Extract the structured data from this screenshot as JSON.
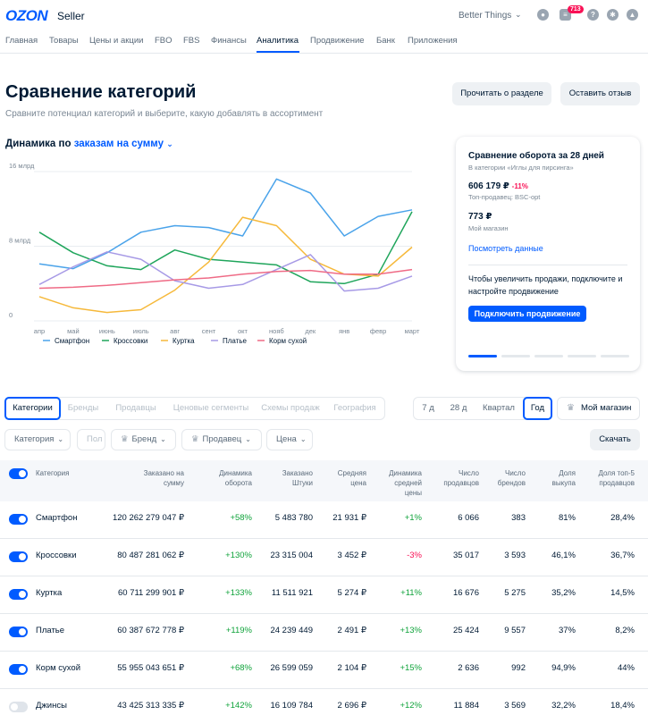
{
  "header": {
    "logo": "OZON",
    "logo_sub": "Seller",
    "store_name": "Better Things",
    "notifications_count": "713"
  },
  "nav": [
    "Главная",
    "Товары",
    "Цены и акции",
    "FBO",
    "FBS",
    "Финансы",
    "Аналитика",
    "Продвижение",
    "Банк",
    "Приложения"
  ],
  "page": {
    "title": "Сравнение категорий",
    "subtitle": "Сравните потенциал категорий и выберите, какую добавлять в ассортимент",
    "read_button": "Прочитать о разделе",
    "feedback_button": "Оставить отзыв"
  },
  "chart_header": {
    "prefix": "Динамика по",
    "metric": "заказам на сумму"
  },
  "chart_data": {
    "type": "line",
    "x": [
      "апр",
      "май",
      "июнь",
      "июль",
      "авг",
      "сент",
      "окт",
      "нояб",
      "дек",
      "янв",
      "февр",
      "март"
    ],
    "y_ticks": [
      "0",
      "8 млрд",
      "16 млрд"
    ],
    "ylim": [
      0,
      16
    ],
    "series": [
      {
        "name": "Смартфон",
        "color": "#4aa3ea",
        "values": [
          6.1,
          5.6,
          7.3,
          9.5,
          10.2,
          10.0,
          9.1,
          15.2,
          13.7,
          9.1,
          11.2,
          11.9
        ]
      },
      {
        "name": "Кроссовки",
        "color": "#1fa55b",
        "values": [
          9.5,
          7.3,
          5.9,
          5.5,
          7.6,
          6.6,
          6.3,
          6.0,
          4.2,
          4.0,
          5.0,
          11.7
        ]
      },
      {
        "name": "Куртка",
        "color": "#f6b93b",
        "values": [
          2.6,
          1.4,
          0.9,
          1.2,
          3.3,
          6.3,
          11.1,
          10.2,
          6.6,
          5.0,
          4.8,
          7.9
        ]
      },
      {
        "name": "Платье",
        "color": "#a79ae6",
        "values": [
          3.9,
          5.8,
          7.4,
          6.6,
          4.3,
          3.5,
          3.9,
          5.5,
          7.1,
          3.2,
          3.5,
          4.8
        ]
      },
      {
        "name": "Корм сухой",
        "color": "#ef6b86",
        "values": [
          3.5,
          3.6,
          3.8,
          4.1,
          4.4,
          4.6,
          5.0,
          5.3,
          5.4,
          5.0,
          5.0,
          5.5
        ]
      }
    ]
  },
  "side_card": {
    "title": "Сравнение оборота за 28 дней",
    "category_note": "В категории «Иглы для пирсинга»",
    "top_value": "606 179 ₽",
    "top_change": "-11%",
    "top_seller": "Топ-продавец: BSC-opt",
    "my_value": "773 ₽",
    "my_label": "Мой магазин",
    "link": "Посмотреть данные",
    "text": "Чтобы увеличить продажи, подключите и настройте продвижение",
    "button": "Подключить продвижение"
  },
  "tabs": [
    "Категории",
    "Бренды",
    "Продавцы",
    "Ценовые сегменты",
    "Схемы продаж",
    "География"
  ],
  "periods": [
    "7 д",
    "28 д",
    "Квартал",
    "Год"
  ],
  "my_store_button": "Мой магазин",
  "filters": [
    "Категория",
    "Пол",
    "Бренд",
    "Продавец",
    "Цена"
  ],
  "download": "Скачать",
  "table": {
    "headers": [
      "Категория",
      "Заказано на сумму",
      "Динамика оборота",
      "Заказано Штуки",
      "Средняя цена",
      "Динамика средней цены",
      "Число продавцов",
      "Число брендов",
      "Доля выкупа",
      "Доля топ-5 продавцов"
    ],
    "rows": [
      {
        "on": true,
        "cells": [
          "Смартфон",
          "120 262 279 047 ₽",
          "+58%",
          "5 483 780",
          "21 931 ₽",
          "+1%",
          "6 066",
          "383",
          "81%",
          "28,4%"
        ]
      },
      {
        "on": true,
        "cells": [
          "Кроссовки",
          "80 487 281 062 ₽",
          "+130%",
          "23 315 004",
          "3 452 ₽",
          "-3%",
          "35 017",
          "3 593",
          "46,1%",
          "36,7%"
        ]
      },
      {
        "on": true,
        "cells": [
          "Куртка",
          "60 711 299 901 ₽",
          "+133%",
          "11 511 921",
          "5 274 ₽",
          "+11%",
          "16 676",
          "5 275",
          "35,2%",
          "14,5%"
        ]
      },
      {
        "on": true,
        "cells": [
          "Платье",
          "60 387 672 778 ₽",
          "+119%",
          "24 239 449",
          "2 491 ₽",
          "+13%",
          "25 424",
          "9 557",
          "37%",
          "8,2%"
        ]
      },
      {
        "on": true,
        "cells": [
          "Корм сухой",
          "55 955 043 651 ₽",
          "+68%",
          "26 599 059",
          "2 104 ₽",
          "+15%",
          "2 636",
          "992",
          "94,9%",
          "44%"
        ]
      },
      {
        "on": false,
        "cells": [
          "Джинсы",
          "43 425 313 335 ₽",
          "+142%",
          "16 109 784",
          "2 696 ₽",
          "+12%",
          "11 884",
          "3 569",
          "32,2%",
          "18,4%"
        ]
      }
    ]
  }
}
